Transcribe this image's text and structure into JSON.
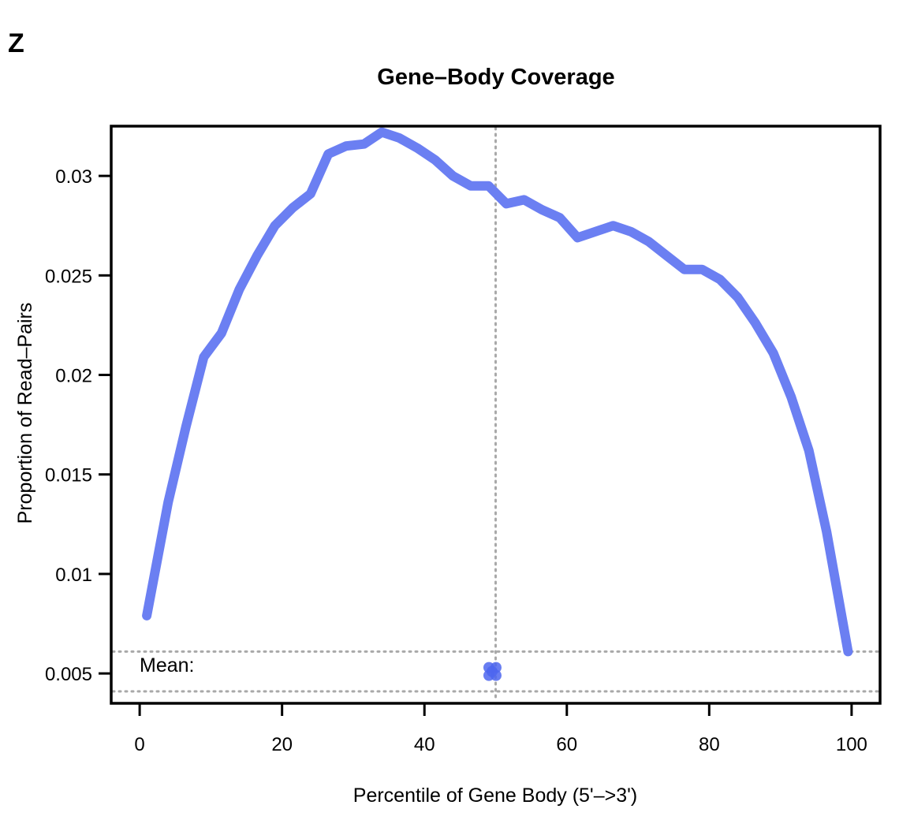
{
  "panel_label": "Z",
  "colors": {
    "line": "#6b7ff2",
    "mean_marker": "#4d66ee",
    "reference": "#a9a9a9",
    "axis": "#000000"
  },
  "chart_data": {
    "type": "line",
    "title": "Gene–Body Coverage",
    "xlabel": "Percentile of Gene Body (5'–>3')",
    "ylabel": "Proportion of Read–Pairs",
    "xlim": [
      -4,
      104
    ],
    "ylim": [
      0.0035,
      0.0325
    ],
    "x_ticks": [
      0,
      20,
      40,
      60,
      80,
      100
    ],
    "x_tick_labels": [
      "0",
      "20",
      "40",
      "60",
      "80",
      "100"
    ],
    "y_ticks": [
      0.005,
      0.01,
      0.015,
      0.02,
      0.025,
      0.03
    ],
    "y_tick_labels": [
      "0.005",
      "0.01",
      "0.015",
      "0.02",
      "0.025",
      "0.03"
    ],
    "grid": false,
    "series": [
      {
        "x": [
          1,
          4,
          6.5,
          9,
          11.5,
          14,
          16.5,
          19,
          21.5,
          24,
          26.5,
          29,
          31.5,
          34,
          36.5,
          39,
          41.5,
          44,
          46.5,
          49,
          51.5,
          54,
          56.5,
          59,
          61.5,
          64,
          66.5,
          69,
          71.5,
          74,
          76.5,
          79,
          81.5,
          84,
          86.5,
          89,
          91.5,
          94,
          96.5,
          99.5
        ],
        "y": [
          0.0079,
          0.0136,
          0.0174,
          0.0209,
          0.0221,
          0.0243,
          0.026,
          0.0275,
          0.0284,
          0.0291,
          0.0311,
          0.0315,
          0.0316,
          0.0322,
          0.0319,
          0.0314,
          0.0308,
          0.03,
          0.0295,
          0.0295,
          0.0286,
          0.0288,
          0.0283,
          0.0279,
          0.0269,
          0.0272,
          0.0275,
          0.0272,
          0.0267,
          0.026,
          0.0253,
          0.0253,
          0.0248,
          0.0239,
          0.0226,
          0.0211,
          0.0189,
          0.0162,
          0.0121,
          0.0061
        ]
      }
    ],
    "reference_lines": {
      "vertical_x": [
        50
      ],
      "horizontal_y": [
        0.0061,
        0.0041
      ]
    },
    "mean_label": "Mean:",
    "mean_point": {
      "x": 49.5,
      "y": 0.0051
    }
  }
}
